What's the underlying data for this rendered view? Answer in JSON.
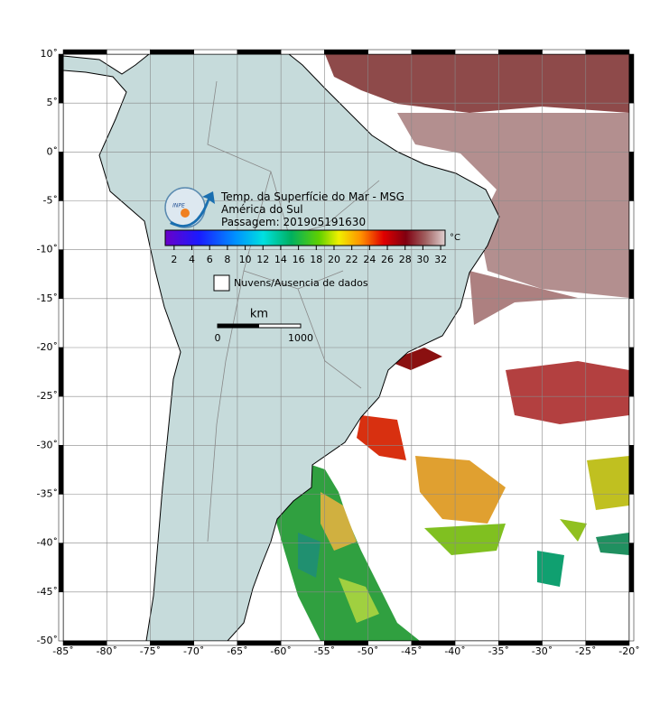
{
  "map": {
    "title_lines": [
      "Temp. da Superfície do Mar - MSG",
      "América do Sul",
      "Passagem: 201905191630"
    ],
    "logo_text": "INPE",
    "lon_ticks": [
      {
        "value": -85,
        "label": "-85˚"
      },
      {
        "value": -80,
        "label": "-80˚"
      },
      {
        "value": -75,
        "label": "-75˚"
      },
      {
        "value": -70,
        "label": "-70˚"
      },
      {
        "value": -65,
        "label": "-65˚"
      },
      {
        "value": -60,
        "label": "-60˚"
      },
      {
        "value": -55,
        "label": "-55˚"
      },
      {
        "value": -50,
        "label": "-50˚"
      },
      {
        "value": -45,
        "label": "-45˚"
      },
      {
        "value": -40,
        "label": "-40˚"
      },
      {
        "value": -35,
        "label": "-35˚"
      },
      {
        "value": -30,
        "label": "-30˚"
      },
      {
        "value": -25,
        "label": "-25˚"
      },
      {
        "value": -20,
        "label": "-20˚"
      }
    ],
    "lat_ticks": [
      {
        "value": 10,
        "label": "10˚"
      },
      {
        "value": 5,
        "label": "5˚"
      },
      {
        "value": 0,
        "label": "0˚"
      },
      {
        "value": -5,
        "label": "-5˚"
      },
      {
        "value": -10,
        "label": "-10˚"
      },
      {
        "value": -15,
        "label": "-15˚"
      },
      {
        "value": -20,
        "label": "-20˚"
      },
      {
        "value": -25,
        "label": "-25˚"
      },
      {
        "value": -30,
        "label": "-30˚"
      },
      {
        "value": -35,
        "label": "-35˚"
      },
      {
        "value": -40,
        "label": "-40˚"
      },
      {
        "value": -45,
        "label": "-45˚"
      },
      {
        "value": -50,
        "label": "-50˚"
      }
    ],
    "xlim": [
      -85,
      -20
    ],
    "ylim": [
      -50,
      10
    ],
    "colorbar": {
      "unit": "°C",
      "range": [
        1,
        32.5
      ],
      "ticks": [
        2,
        4,
        6,
        8,
        10,
        12,
        14,
        16,
        18,
        20,
        22,
        24,
        26,
        28,
        30,
        32
      ]
    },
    "legend": "Nuvens/Ausencia de dados",
    "scale_bar": {
      "unit": "km",
      "labels": [
        0,
        1000
      ]
    }
  }
}
